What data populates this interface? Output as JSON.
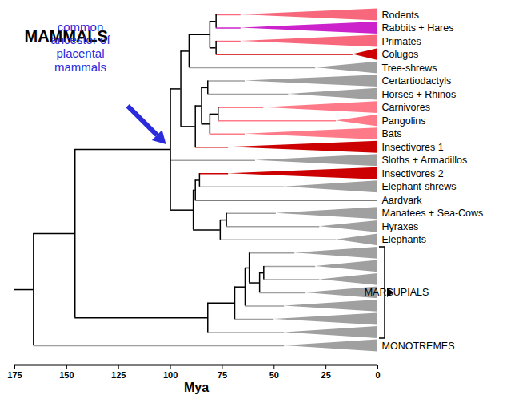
{
  "chart_data": {
    "type": "tree",
    "title": "MAMMALS",
    "x_label": "Mya",
    "xlim": [
      175,
      0
    ],
    "xticks": [
      175,
      150,
      125,
      100,
      75,
      50,
      25,
      0
    ],
    "tree": {
      "age": 166,
      "children": [
        {
          "age": 146,
          "children": [
            {
              "age": 100,
              "annotation": "common\nancestor of\nplacental\nmammals",
              "children": [
                {
                  "age": 95,
                  "children": [
                    {
                      "age": 91,
                      "children": [
                        {
                          "age": 81,
                          "children": [
                            {
                              "age": 78,
                              "children": [
                                {
                                  "label": "Rodents",
                                  "age": 66,
                                  "color": "#f7687c"
                                },
                                {
                                  "label": "Rabbits + Hares",
                                  "age": 66,
                                  "color": "#cc22cc"
                                }
                              ]
                            },
                            {
                              "age": 78,
                              "children": [
                                {
                                  "label": "Primates",
                                  "age": 66,
                                  "color": "#f7687c"
                                },
                                {
                                  "label": "Colugos",
                                  "age": 12,
                                  "color": "#cc0000"
                                }
                              ]
                            }
                          ]
                        },
                        {
                          "label": "Tree-shrews",
                          "age": 30,
                          "color": "#a0a0a0"
                        }
                      ]
                    },
                    {
                      "age": 88,
                      "children": [
                        {
                          "age": 85,
                          "children": [
                            {
                              "age": 82,
                              "children": [
                                {
                                  "label": "Certartiodactyls",
                                  "age": 64,
                                  "color": "#a0a0a0"
                                },
                                {
                                  "label": "Horses + Rhinos",
                                  "age": 43,
                                  "color": "#a0a0a0"
                                }
                              ]
                            },
                            {
                              "age": 81,
                              "children": [
                                {
                                  "age": 77,
                                  "children": [
                                    {
                                      "label": "Carnivores",
                                      "age": 55,
                                      "color": "#ff7a88"
                                    },
                                    {
                                      "label": "Pangolins",
                                      "age": 20,
                                      "color": "#ff7a88"
                                    }
                                  ]
                                },
                                {
                                  "label": "Bats",
                                  "age": 64,
                                  "color": "#ff7a88"
                                }
                              ]
                            }
                          ]
                        },
                        {
                          "label": "Insectivores 1",
                          "age": 72,
                          "color": "#cc0000"
                        }
                      ]
                    }
                  ]
                },
                {
                  "label": "Sloths + Armadillos",
                  "age": 59,
                  "color": "#a0a0a0"
                },
                {
                  "age": 89,
                  "children": [
                    {
                      "age": 88,
                      "children": [
                        {
                          "age": 86,
                          "children": [
                            {
                              "label": "Insectivores 2",
                              "age": 72,
                              "color": "#cc0000"
                            },
                            {
                              "label": "Elephant-shrews",
                              "age": 45,
                              "color": "#a0a0a0"
                            }
                          ]
                        },
                        {
                          "label": "Aardvark",
                          "age": 0,
                          "color": "#000000"
                        }
                      ]
                    },
                    {
                      "age": 76,
                      "children": [
                        {
                          "age": 73,
                          "children": [
                            {
                              "label": "Manatees + Sea-Cows",
                              "age": 49,
                              "color": "#a0a0a0"
                            },
                            {
                              "label": "Hyraxes",
                              "age": 28,
                              "color": "#a0a0a0"
                            }
                          ]
                        },
                        {
                          "label": "Elephants",
                          "age": 20,
                          "color": "#a0a0a0"
                        }
                      ]
                    }
                  ]
                }
              ]
            },
            {
              "age": 82,
              "label": "MARSUPIALS",
              "children": [
                {
                  "age": 69,
                  "children": [
                    {
                      "age": 64,
                      "children": [
                        {
                          "age": 62,
                          "children": [
                            {
                              "label": null,
                              "age": 40,
                              "color": "#a0a0a0"
                            },
                            {
                              "age": 57,
                              "children": [
                                {
                                  "age": 55,
                                  "children": [
                                    {
                                      "label": null,
                                      "age": 30,
                                      "color": "#a0a0a0"
                                    },
                                    {
                                      "label": null,
                                      "age": 28,
                                      "color": "#a0a0a0"
                                    }
                                  ]
                                },
                                {
                                  "label": null,
                                  "age": 35,
                                  "color": "#a0a0a0"
                                }
                              ]
                            }
                          ]
                        },
                        {
                          "label": null,
                          "age": 45,
                          "color": "#a0a0a0"
                        }
                      ]
                    },
                    {
                      "label": null,
                      "age": 50,
                      "color": "#a0a0a0"
                    }
                  ]
                },
                {
                  "label": null,
                  "age": 45,
                  "color": "#a0a0a0"
                }
              ]
            }
          ]
        },
        {
          "label": "MONOTREMES",
          "age": 45,
          "color": "#a0a0a0"
        }
      ]
    }
  }
}
